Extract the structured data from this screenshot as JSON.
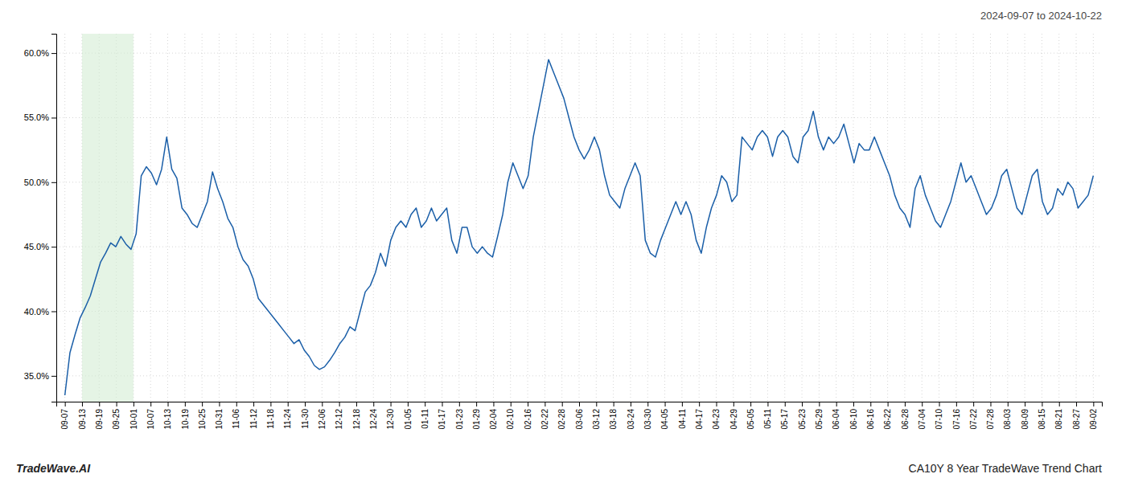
{
  "chart_data": {
    "type": "line",
    "title": "2024-09-07 to 2024-10-22",
    "annotations": [
      "TradeWave.AI",
      "CA10Y 8 Year TradeWave Trend Chart"
    ],
    "color": "#1b5fa8",
    "grid": true,
    "spans": [
      {
        "x0": 1,
        "x1": 4,
        "color": "#d4ecd4"
      }
    ],
    "xlim": [
      -0.5,
      60.5
    ],
    "xticks": [
      {
        "value": 0,
        "label": "09-07"
      },
      {
        "value": 1,
        "label": "09-13"
      },
      {
        "value": 2,
        "label": "09-19"
      },
      {
        "value": 3,
        "label": "09-25"
      },
      {
        "value": 4,
        "label": "10-01"
      },
      {
        "value": 5,
        "label": "10-07"
      },
      {
        "value": 6,
        "label": "10-13"
      },
      {
        "value": 7,
        "label": "10-19"
      },
      {
        "value": 8,
        "label": "10-25"
      },
      {
        "value": 9,
        "label": "10-31"
      },
      {
        "value": 10,
        "label": "11-06"
      },
      {
        "value": 11,
        "label": "11-12"
      },
      {
        "value": 12,
        "label": "11-18"
      },
      {
        "value": 13,
        "label": "11-24"
      },
      {
        "value": 14,
        "label": "11-30"
      },
      {
        "value": 15,
        "label": "12-06"
      },
      {
        "value": 16,
        "label": "12-12"
      },
      {
        "value": 17,
        "label": "12-18"
      },
      {
        "value": 18,
        "label": "12-24"
      },
      {
        "value": 19,
        "label": "12-30"
      },
      {
        "value": 20,
        "label": "01-05"
      },
      {
        "value": 21,
        "label": "01-11"
      },
      {
        "value": 22,
        "label": "01-17"
      },
      {
        "value": 23,
        "label": "01-23"
      },
      {
        "value": 24,
        "label": "01-29"
      },
      {
        "value": 25,
        "label": "02-04"
      },
      {
        "value": 26,
        "label": "02-10"
      },
      {
        "value": 27,
        "label": "02-16"
      },
      {
        "value": 28,
        "label": "02-22"
      },
      {
        "value": 29,
        "label": "02-28"
      },
      {
        "value": 30,
        "label": "03-06"
      },
      {
        "value": 31,
        "label": "03-12"
      },
      {
        "value": 32,
        "label": "03-18"
      },
      {
        "value": 33,
        "label": "03-24"
      },
      {
        "value": 34,
        "label": "03-30"
      },
      {
        "value": 35,
        "label": "04-05"
      },
      {
        "value": 36,
        "label": "04-11"
      },
      {
        "value": 37,
        "label": "04-17"
      },
      {
        "value": 38,
        "label": "04-23"
      },
      {
        "value": 39,
        "label": "04-29"
      },
      {
        "value": 40,
        "label": "05-05"
      },
      {
        "value": 41,
        "label": "05-11"
      },
      {
        "value": 42,
        "label": "05-17"
      },
      {
        "value": 43,
        "label": "05-23"
      },
      {
        "value": 44,
        "label": "05-29"
      },
      {
        "value": 45,
        "label": "06-04"
      },
      {
        "value": 46,
        "label": "06-10"
      },
      {
        "value": 47,
        "label": "06-16"
      },
      {
        "value": 48,
        "label": "06-22"
      },
      {
        "value": 49,
        "label": "06-28"
      },
      {
        "value": 50,
        "label": "07-04"
      },
      {
        "value": 51,
        "label": "07-10"
      },
      {
        "value": 52,
        "label": "07-16"
      },
      {
        "value": 53,
        "label": "07-22"
      },
      {
        "value": 54,
        "label": "07-28"
      },
      {
        "value": 55,
        "label": "08-03"
      },
      {
        "value": 56,
        "label": "08-09"
      },
      {
        "value": 57,
        "label": "08-15"
      },
      {
        "value": 58,
        "label": "08-21"
      },
      {
        "value": 59,
        "label": "08-27"
      },
      {
        "value": 60,
        "label": "09-02"
      }
    ],
    "ylim": [
      33.0,
      61.5
    ],
    "yticks": [
      {
        "value": 35.0,
        "label": "35.0%"
      },
      {
        "value": 40.0,
        "label": "40.0%"
      },
      {
        "value": 45.0,
        "label": "45.0%"
      },
      {
        "value": 50.0,
        "label": "50.0%"
      },
      {
        "value": 55.0,
        "label": "55.0%"
      },
      {
        "value": 60.0,
        "label": "60.0%"
      }
    ],
    "x": [
      0,
      0.297,
      0.5941,
      0.8911,
      1.1881,
      1.4851,
      1.7822,
      2.0792,
      2.3762,
      2.6733,
      2.9703,
      3.2673,
      3.5644,
      3.8614,
      4.1584,
      4.4554,
      4.7525,
      5.0495,
      5.3465,
      5.6436,
      5.9406,
      6.2376,
      6.5347,
      6.8317,
      7.1287,
      7.4257,
      7.7228,
      8.0198,
      8.3168,
      8.6139,
      8.9109,
      9.2079,
      9.505,
      9.802,
      10.099,
      10.396,
      10.6931,
      10.9901,
      11.2871,
      11.5842,
      11.8812,
      12.1782,
      12.4752,
      12.7723,
      13.0693,
      13.3663,
      13.6634,
      13.9604,
      14.2574,
      14.5545,
      14.8515,
      15.1485,
      15.4455,
      15.7426,
      16.0396,
      16.3366,
      16.6337,
      16.9307,
      17.2277,
      17.5248,
      17.8218,
      18.1188,
      18.4158,
      18.7129,
      19.0099,
      19.3069,
      19.604,
      19.901,
      20.198,
      20.495,
      20.7921,
      21.0891,
      21.3861,
      21.6832,
      21.9802,
      22.2772,
      22.5743,
      22.8713,
      23.1683,
      23.4653,
      23.7624,
      24.0594,
      24.3564,
      24.6535,
      24.9505,
      25.2475,
      25.5446,
      25.8416,
      26.1386,
      26.4356,
      26.7327,
      27.0297,
      27.3267,
      27.6238,
      27.9208,
      28.2178,
      28.5149,
      28.8119,
      29.1089,
      29.4059,
      29.703,
      30,
      30.297,
      30.5941,
      30.8911,
      31.1881,
      31.4851,
      31.7822,
      32.0792,
      32.3762,
      32.6733,
      32.9703,
      33.2673,
      33.5644,
      33.8614,
      34.1584,
      34.4554,
      34.7525,
      35.0495,
      35.3465,
      35.6436,
      35.9406,
      36.2376,
      36.5347,
      36.8317,
      37.1287,
      37.4257,
      37.7228,
      38.0198,
      38.3168,
      38.6139,
      38.9109,
      39.2079,
      39.505,
      39.802,
      40.099,
      40.396,
      40.6931,
      40.9901,
      41.2871,
      41.5842,
      41.8812,
      42.1782,
      42.4752,
      42.7723,
      43.0693,
      43.3663,
      43.6634,
      43.9604,
      44.2574,
      44.5545,
      44.8515,
      45.1485,
      45.4455,
      45.7426,
      46.0396,
      46.3366,
      46.6337,
      46.9307,
      47.2277,
      47.5248,
      47.8218,
      48.1188,
      48.4158,
      48.7129,
      49.0099,
      49.3069,
      49.604,
      49.901,
      50.198,
      50.495,
      50.7921,
      51.0891,
      51.3861,
      51.6832,
      51.9802,
      52.2772,
      52.5743,
      52.8713,
      53.1683,
      53.4653,
      53.7624,
      54.0594,
      54.3564,
      54.6535,
      54.9505,
      55.2475,
      55.5446,
      55.8416,
      56.1386,
      56.4356,
      56.7327,
      57.0297,
      57.3267,
      57.6238,
      57.9208,
      58.2178,
      58.5149,
      58.8119,
      59.1089,
      59.4059,
      59.703,
      60
    ],
    "values": [
      33.5,
      36.8,
      38.2,
      39.5,
      40.3,
      41.2,
      42.5,
      43.8,
      44.5,
      45.3,
      45.0,
      45.8,
      45.2,
      44.8,
      46.0,
      50.5,
      51.2,
      50.7,
      49.8,
      51.0,
      53.5,
      51.0,
      50.3,
      48.0,
      47.5,
      46.8,
      46.5,
      47.5,
      48.5,
      50.8,
      49.5,
      48.5,
      47.2,
      46.5,
      45.0,
      44.0,
      43.5,
      42.5,
      41.0,
      40.5,
      40.0,
      39.5,
      39.0,
      38.5,
      38.0,
      37.5,
      37.8,
      37.0,
      36.5,
      35.8,
      35.5,
      35.7,
      36.2,
      36.8,
      37.5,
      38.0,
      38.8,
      38.5,
      40.0,
      41.5,
      42.0,
      43.0,
      44.5,
      43.5,
      45.5,
      46.5,
      47.0,
      46.5,
      47.5,
      48.0,
      46.5,
      47.0,
      48.0,
      47.0,
      47.5,
      48.0,
      45.5,
      44.5,
      46.5,
      46.5,
      45.0,
      44.5,
      45.0,
      44.5,
      44.2,
      45.8,
      47.5,
      50.0,
      51.5,
      50.5,
      49.5,
      50.5,
      53.5,
      55.5,
      57.5,
      59.5,
      58.5,
      57.5,
      56.5,
      55.0,
      53.5,
      52.5,
      51.8,
      52.5,
      53.5,
      52.5,
      50.5,
      49.0,
      48.5,
      48.0,
      49.5,
      50.5,
      51.5,
      50.5,
      45.5,
      44.5,
      44.2,
      45.5,
      46.5,
      47.5,
      48.5,
      47.5,
      48.5,
      47.5,
      45.5,
      44.5,
      46.5,
      48.0,
      49.0,
      50.5,
      50.0,
      48.5,
      49.0,
      53.5,
      53.0,
      52.5,
      53.5,
      54.0,
      53.5,
      52.0,
      53.5,
      54.0,
      53.5,
      52.0,
      51.5,
      53.5,
      54.0,
      55.5,
      53.5,
      52.5,
      53.5,
      53.0,
      53.5,
      54.5,
      53.0,
      51.5,
      53.0,
      52.5,
      52.5,
      53.5,
      52.5,
      51.5,
      50.5,
      49.0,
      48.0,
      47.5,
      46.5,
      49.5,
      50.5,
      49.0,
      48.0,
      47.0,
      46.5,
      47.5,
      48.5,
      50.0,
      51.5,
      50.0,
      50.5,
      49.5,
      48.5,
      47.5,
      48.0,
      49.0,
      50.5,
      51.0,
      49.5,
      48.0,
      47.5,
      49.0,
      50.5,
      51.0,
      48.5,
      47.5,
      48.0,
      49.5,
      49.0,
      50.0,
      49.5,
      48.0,
      48.5,
      49.0,
      50.5
    ]
  }
}
